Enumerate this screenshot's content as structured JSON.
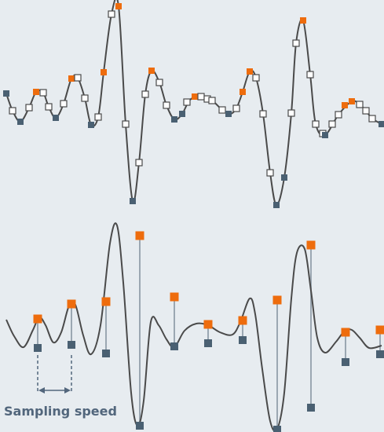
{
  "caption": "Sampling speed",
  "colors": {
    "background": "#e7ecf0",
    "waveform": "#4a4a4a",
    "peak_marker": "#ee6c0d",
    "trough_marker": "#4a6072",
    "sample_marker": "#ffffff",
    "sample_marker_stroke": "#4a4a4a",
    "stem": "#9ba7b2",
    "dimension": "#52667c"
  },
  "icons": {
    "peak": "orange-square",
    "trough": "slate-square",
    "sample": "white-square",
    "dimension": "double-arrow"
  }
}
